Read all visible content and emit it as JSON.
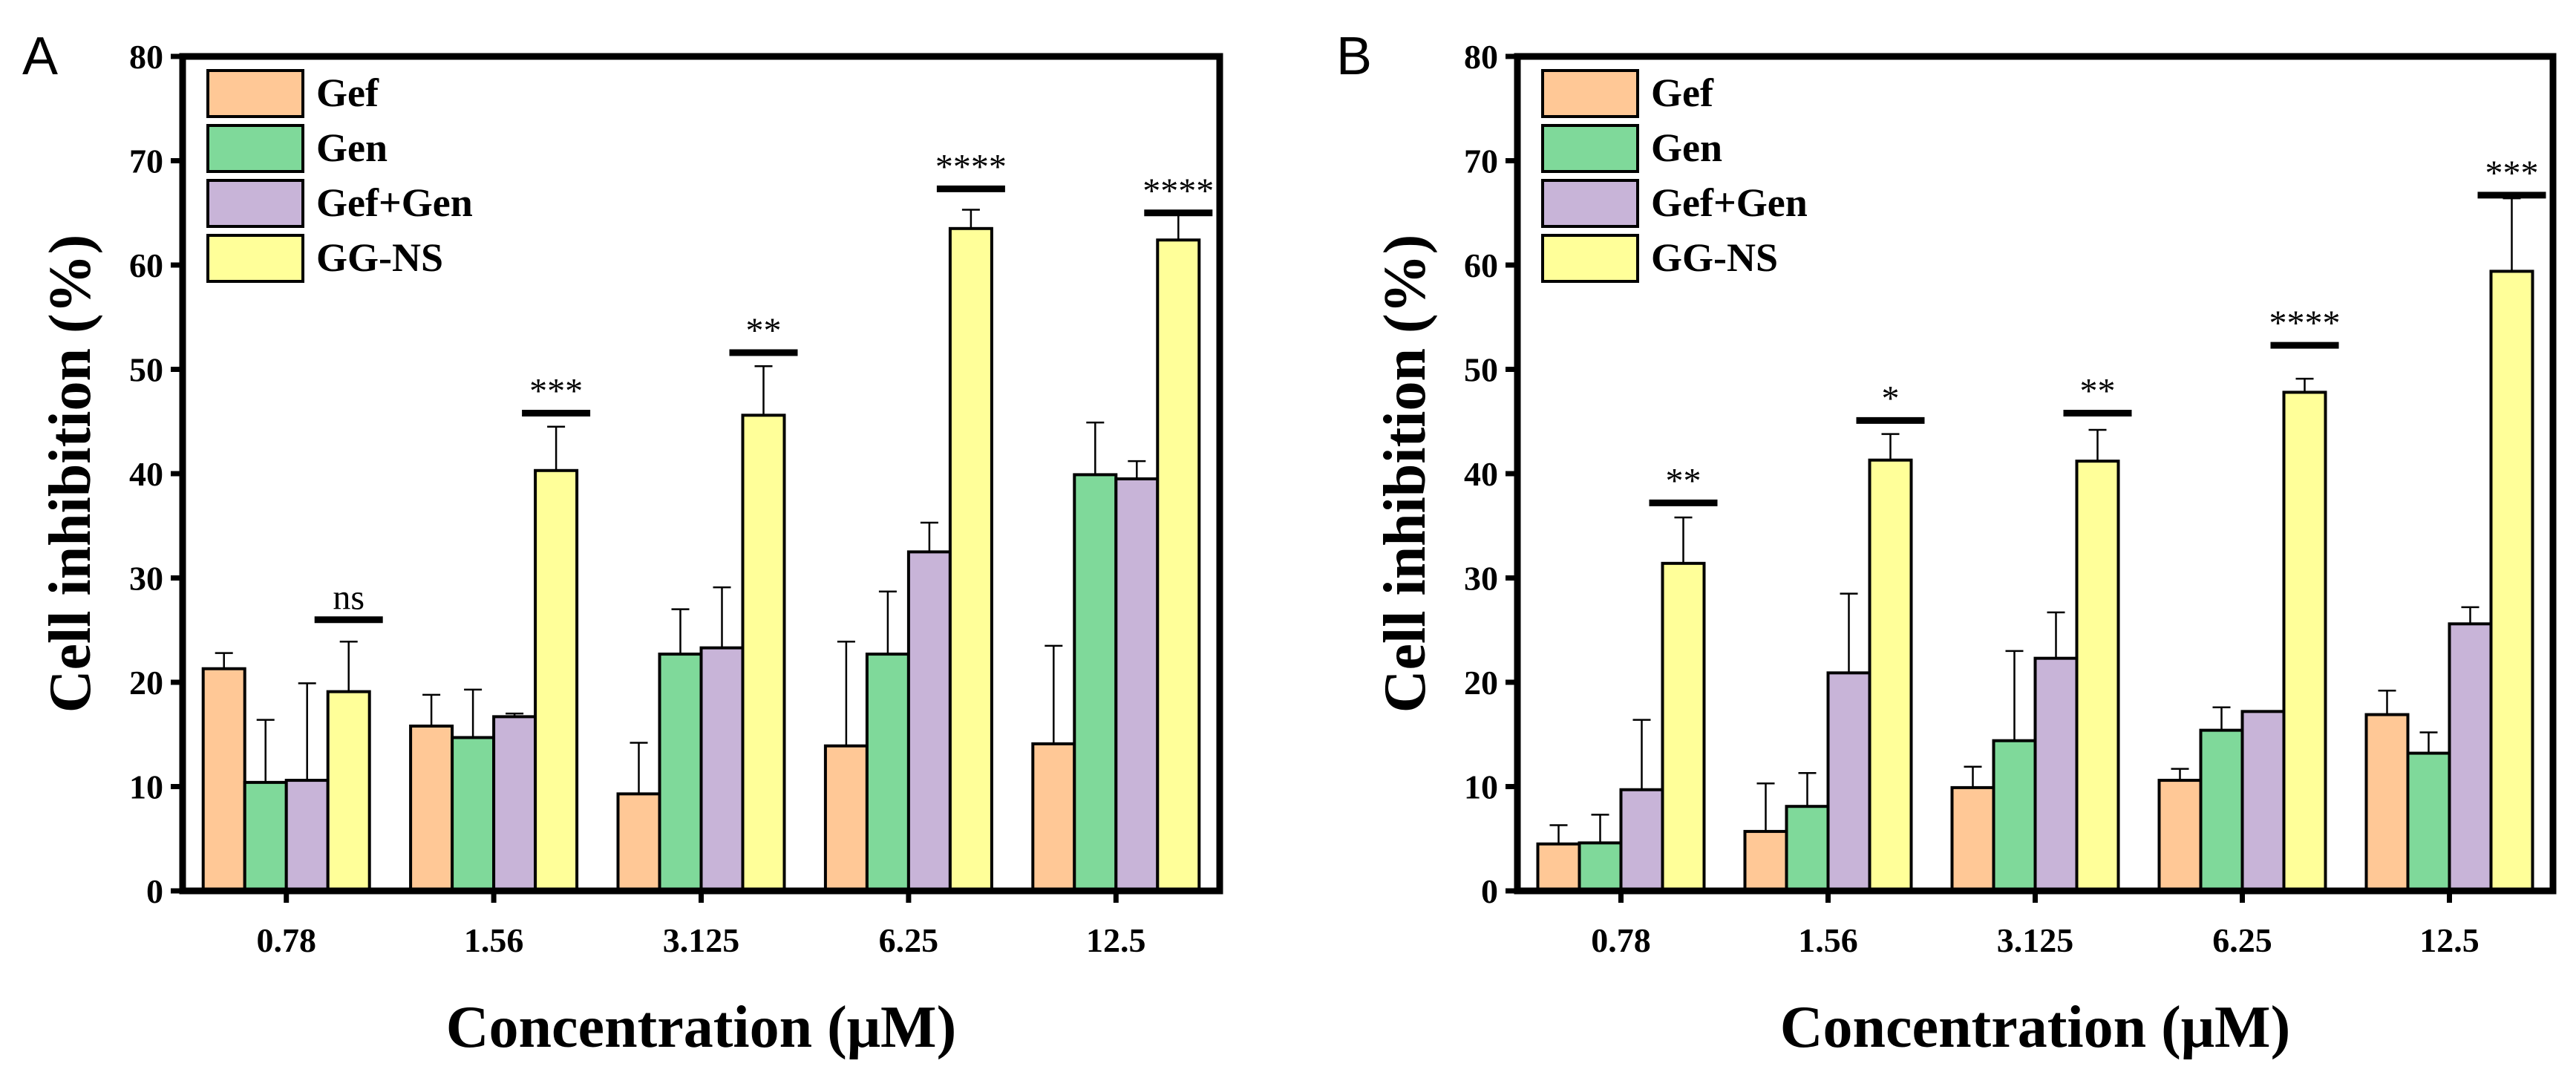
{
  "chart_data": [
    {
      "type": "bar",
      "panel_label": "A",
      "xlabel": "Concentration (μM)",
      "ylabel": "Cell inhibition (%)",
      "ylim": [
        0,
        80
      ],
      "yticks": [
        0,
        10,
        20,
        30,
        40,
        50,
        60,
        70,
        80
      ],
      "categories": [
        "0.78",
        "1.56",
        "3.125",
        "6.25",
        "12.5"
      ],
      "legend_position": "top-left",
      "series": [
        {
          "name": "Gef",
          "color": "#FFC896",
          "values": [
            21.3,
            15.8,
            9.3,
            13.9,
            14.1
          ],
          "error_upper": [
            22.8,
            18.8,
            14.2,
            23.9,
            23.5
          ]
        },
        {
          "name": "Gen",
          "color": "#7FD99A",
          "values": [
            10.4,
            14.7,
            22.7,
            22.7,
            39.9
          ],
          "error_upper": [
            16.4,
            19.3,
            27.0,
            28.7,
            44.9
          ]
        },
        {
          "name": "Gef+Gen",
          "color": "#C8B4D8",
          "values": [
            10.6,
            16.7,
            23.3,
            32.5,
            39.5
          ],
          "error_upper": [
            19.9,
            17.0,
            29.1,
            35.3,
            41.2
          ]
        },
        {
          "name": "GG-NS",
          "color": "#FFFF99",
          "values": [
            19.1,
            40.3,
            45.6,
            63.5,
            62.4
          ],
          "error_upper": [
            23.9,
            44.5,
            50.3,
            65.3,
            64.8
          ]
        }
      ],
      "significance": [
        {
          "category": "0.78",
          "label": "ns",
          "level": 26.0
        },
        {
          "category": "1.56",
          "label": "***",
          "level": 45.8
        },
        {
          "category": "3.125",
          "label": "**",
          "level": 51.6
        },
        {
          "category": "6.25",
          "label": "****",
          "level": 67.3
        },
        {
          "category": "12.5",
          "label": "****",
          "level": 65.0
        }
      ]
    },
    {
      "type": "bar",
      "panel_label": "B",
      "xlabel": "Concentration (μM)",
      "ylabel": "Cell inhibition (%)",
      "ylim": [
        0,
        80
      ],
      "yticks": [
        0,
        10,
        20,
        30,
        40,
        50,
        60,
        70,
        80
      ],
      "categories": [
        "0.78",
        "1.56",
        "3.125",
        "6.25",
        "12.5"
      ],
      "legend_position": "top-left",
      "series": [
        {
          "name": "Gef",
          "color": "#FFC896",
          "values": [
            4.5,
            5.7,
            9.9,
            10.6,
            16.9
          ],
          "error_upper": [
            6.3,
            10.3,
            11.9,
            11.7,
            19.2
          ]
        },
        {
          "name": "Gen",
          "color": "#7FD99A",
          "values": [
            4.6,
            8.1,
            14.4,
            15.4,
            13.2
          ],
          "error_upper": [
            7.3,
            11.3,
            23.0,
            17.6,
            15.2
          ]
        },
        {
          "name": "Gef+Gen",
          "color": "#C8B4D8",
          "values": [
            9.7,
            20.9,
            22.3,
            17.2,
            25.6
          ],
          "error_upper": [
            16.4,
            28.5,
            26.7,
            17.2,
            27.2
          ]
        },
        {
          "name": "GG-NS",
          "color": "#FFFF99",
          "values": [
            31.4,
            41.3,
            41.2,
            47.8,
            59.4
          ],
          "error_upper": [
            35.8,
            43.8,
            44.2,
            49.1,
            66.4
          ]
        }
      ],
      "significance": [
        {
          "category": "0.78",
          "label": "**",
          "level": 37.2
        },
        {
          "category": "1.56",
          "label": "*",
          "level": 45.1
        },
        {
          "category": "3.125",
          "label": "**",
          "level": 45.8
        },
        {
          "category": "6.25",
          "label": "****",
          "level": 52.3
        },
        {
          "category": "12.5",
          "label": "***",
          "level": 66.7
        }
      ]
    }
  ]
}
